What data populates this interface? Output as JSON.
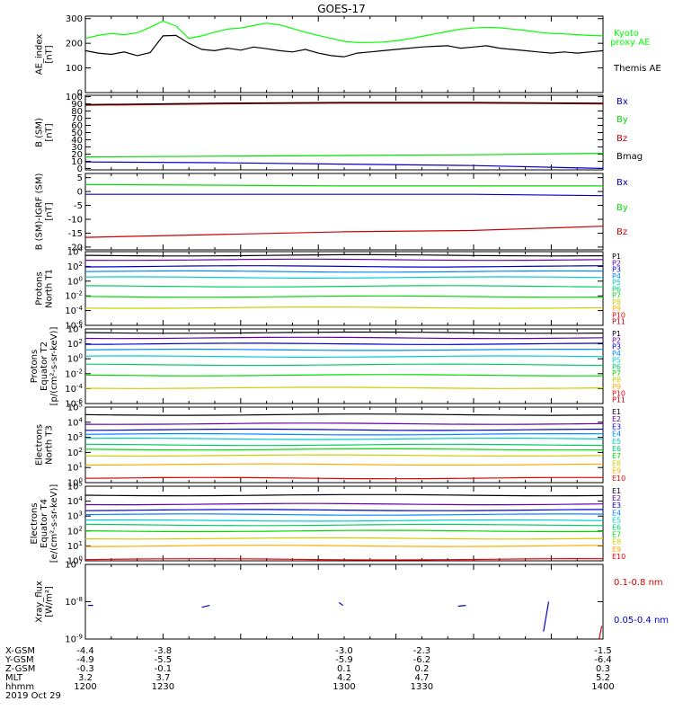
{
  "title": "GOES-17",
  "chart_data": [
    {
      "type": "line",
      "ylabel": [
        "AE_index",
        "[nT]"
      ],
      "ylim": [
        0,
        310
      ],
      "yticks": [
        "0",
        "100",
        "200",
        "300"
      ],
      "ytick_values": [
        0,
        100,
        200,
        300
      ],
      "x": [
        1200,
        1205,
        1210,
        1215,
        1220,
        1225,
        1230,
        1235,
        1240,
        1245,
        1250,
        1255,
        1260,
        1265,
        1270,
        1275,
        1280,
        1285,
        1290,
        1295,
        1300,
        1305,
        1310,
        1315,
        1320,
        1325,
        1330,
        1335,
        1340,
        1345,
        1350,
        1355,
        1360,
        1365,
        1370,
        1375,
        1380,
        1385,
        1390,
        1395,
        1400
      ],
      "series": [
        {
          "name": "Kyoto proxy AE",
          "color": "#00ff00",
          "values": [
            220,
            232,
            240,
            235,
            242,
            265,
            290,
            270,
            220,
            230,
            245,
            258,
            262,
            272,
            282,
            275,
            260,
            245,
            232,
            220,
            208,
            203,
            203,
            205,
            210,
            218,
            228,
            238,
            248,
            258,
            262,
            265,
            263,
            258,
            252,
            245,
            240,
            238,
            235,
            232,
            230
          ]
        },
        {
          "name": "Themis AE",
          "color": "#000000",
          "values": [
            170,
            160,
            155,
            165,
            150,
            162,
            230,
            232,
            200,
            175,
            170,
            180,
            172,
            185,
            178,
            170,
            165,
            175,
            160,
            150,
            145,
            160,
            165,
            170,
            175,
            180,
            185,
            188,
            190,
            180,
            185,
            190,
            180,
            175,
            170,
            165,
            160,
            165,
            160,
            165,
            170
          ]
        }
      ]
    },
    {
      "type": "line",
      "ylabel": [
        "B (SM)",
        "[nT]"
      ],
      "ylim": [
        -2,
        102
      ],
      "yticks": [
        "0",
        "10",
        "20",
        "30",
        "40",
        "50",
        "60",
        "70",
        "80",
        "90",
        "100"
      ],
      "ytick_values": [
        0,
        10,
        20,
        30,
        40,
        50,
        60,
        70,
        80,
        90,
        100
      ],
      "x": [
        1200,
        1250,
        1300,
        1350,
        1400
      ],
      "series": [
        {
          "name": "Bx",
          "color": "#0000cc",
          "values": [
            9,
            8,
            6,
            4,
            0
          ]
        },
        {
          "name": "By",
          "color": "#00dd00",
          "values": [
            16,
            17,
            18,
            19,
            21
          ]
        },
        {
          "name": "Bz",
          "color": "#cc0000",
          "values": [
            88,
            90,
            91,
            91,
            90
          ]
        },
        {
          "name": "Bmag",
          "color": "#000000",
          "values": [
            89,
            91,
            92,
            92,
            91
          ]
        }
      ]
    },
    {
      "type": "line",
      "ylabel": [
        "B (SM)-IGRF (SM)",
        "[nT]"
      ],
      "ylim": [
        -21,
        6.5
      ],
      "yticks": [
        "5",
        "0",
        "-5",
        "-10",
        "-15",
        "-20"
      ],
      "ytick_values": [
        5,
        0,
        -5,
        -10,
        -15,
        -20
      ],
      "x": [
        1200,
        1250,
        1300,
        1350,
        1400
      ],
      "series": [
        {
          "name": "Bx",
          "color": "#0000cc",
          "values": [
            -1,
            -1,
            -1,
            -1,
            -1.5
          ]
        },
        {
          "name": "By",
          "color": "#00dd00",
          "values": [
            2.5,
            2.3,
            2,
            2,
            2
          ]
        },
        {
          "name": "Bz",
          "color": "#cc0000",
          "values": [
            -16.5,
            -15.5,
            -14.5,
            -14,
            -12.5
          ]
        }
      ]
    },
    {
      "type": "line",
      "log": true,
      "ylabel": [
        "Protons",
        "North T1"
      ],
      "ylim": [
        -6,
        4
      ],
      "yticks": [
        "10^4",
        "10^2",
        "10^0",
        "10^-2",
        "10^-4",
        "10^-6"
      ],
      "ytick_values": [
        4,
        2,
        0,
        -2,
        -4,
        -6
      ],
      "labels": [
        "P1",
        "P2",
        "P3",
        "P4",
        "P5",
        "P6",
        "P7",
        "P8",
        "P9",
        "P10",
        "P11"
      ],
      "colors": [
        "#000000",
        "#6600aa",
        "#0000cc",
        "#0088ff",
        "#00cccc",
        "#00cc66",
        "#00dd00",
        "#cccc00",
        "#ffaa00",
        "#ee0000",
        "#aa0000"
      ],
      "log_levels": [
        3.5,
        2.9,
        2.0,
        1.3,
        0.5,
        -0.7,
        -2.1,
        -3.6,
        null,
        null,
        null
      ]
    },
    {
      "type": "line",
      "log": true,
      "ylabel": [
        "Protons",
        "Equator T2",
        "[p/(cm²-s-sr-keV)]"
      ],
      "ylim": [
        -6,
        4
      ],
      "yticks": [
        "10^4",
        "10^2",
        "10^0",
        "10^-2",
        "10^-4",
        "10^-6"
      ],
      "ytick_values": [
        4,
        2,
        0,
        -2,
        -4,
        -6
      ],
      "labels": [
        "P1",
        "P2",
        "P3",
        "P4",
        "P5",
        "P6",
        "P7",
        "P8",
        "P9",
        "P10",
        "P11"
      ],
      "colors": [
        "#000000",
        "#6600aa",
        "#0000cc",
        "#0088ff",
        "#00cccc",
        "#00cc66",
        "#00dd00",
        "#cccc00",
        "#ffaa00",
        "#ee0000",
        "#aa0000"
      ],
      "log_levels": [
        3.5,
        2.8,
        2.0,
        1.2,
        0.3,
        -0.8,
        -2.2,
        -3.9,
        null,
        null,
        null
      ]
    },
    {
      "type": "line",
      "log": true,
      "ylabel": [
        "Electrons",
        "North T3"
      ],
      "ylim": [
        0,
        5
      ],
      "yticks": [
        "10^5",
        "10^4",
        "10^3",
        "10^2",
        "10^1",
        "10^0"
      ],
      "ytick_values": [
        5,
        4,
        3,
        2,
        1,
        0
      ],
      "labels": [
        "E1",
        "E2",
        "E3",
        "E4",
        "E5",
        "E6",
        "E7",
        "E8",
        "E9",
        "E10"
      ],
      "colors": [
        "#000000",
        "#6600aa",
        "#0000cc",
        "#0088ff",
        "#00cccc",
        "#00cc66",
        "#00dd00",
        "#cccc00",
        "#ffaa00",
        "#ee0000",
        "#aa0000"
      ],
      "log_levels": [
        4.5,
        3.9,
        3.5,
        3.2,
        2.9,
        2.5,
        2.2,
        1.8,
        1.2,
        0.3
      ]
    },
    {
      "type": "line",
      "log": true,
      "ylabel": [
        "Electrons",
        "Equator T4",
        "[e/(cm²-s-sr-keV)]"
      ],
      "ylim": [
        0,
        5
      ],
      "yticks": [
        "10^5",
        "10^4",
        "10^3",
        "10^2",
        "10^1",
        "10^0"
      ],
      "ytick_values": [
        5,
        4,
        3,
        2,
        1,
        0
      ],
      "labels": [
        "E1",
        "E2",
        "E3",
        "E4",
        "E5",
        "E6",
        "E7",
        "E8",
        "E9",
        "E10"
      ],
      "colors": [
        "#000000",
        "#6600aa",
        "#0000cc",
        "#0088ff",
        "#00cccc",
        "#00cc66",
        "#00dd00",
        "#cccc00",
        "#ffaa00",
        "#ee0000",
        "#aa0000"
      ],
      "log_levels": [
        4.4,
        3.8,
        3.4,
        3.1,
        2.7,
        2.4,
        2.0,
        1.5,
        1.0,
        0.1
      ]
    },
    {
      "type": "line",
      "log": true,
      "ylabel": [
        "Xray_flux",
        "[W/m²]"
      ],
      "ylim": [
        -9,
        -7
      ],
      "yticks": [
        "10^-7",
        "10^-8",
        "10^-9"
      ],
      "ytick_values": [
        -7,
        -8,
        -9
      ],
      "series": [
        {
          "name": "0.1-0.8 nm",
          "color": "#cc0000",
          "segments": [
            [
              [
                1398.5,
                -9.0
              ],
              [
                1399.5,
                -8.65
              ]
            ]
          ]
        },
        {
          "name": "0.05-0.4 nm",
          "color": "#0000cc",
          "segments": [
            [
              [
                1201,
                -8.1
              ],
              [
                1203,
                -8.1
              ]
            ],
            [
              [
                1245,
                -8.15
              ],
              [
                1248,
                -8.1
              ]
            ],
            [
              [
                1298,
                -8.02
              ],
              [
                1299.5,
                -8.1
              ]
            ],
            [
              [
                1344,
                -8.12
              ],
              [
                1347,
                -8.1
              ]
            ],
            [
              [
                1377,
                -8.8
              ],
              [
                1379,
                -8.0
              ]
            ]
          ]
        }
      ]
    }
  ],
  "xaxis": {
    "rows": [
      {
        "label": "X-GSM",
        "values": [
          "-4.4",
          "-3.8",
          "-3.0",
          "-2.3",
          "-1.5"
        ]
      },
      {
        "label": "Y-GSM",
        "values": [
          "-4.9",
          "-5.5",
          "-5.9",
          "-6.2",
          "-6.4"
        ]
      },
      {
        "label": "Z-GSM",
        "values": [
          "-0.3",
          "-0.1",
          "0.1",
          "0.2",
          "0.3"
        ]
      },
      {
        "label": "MLT",
        "values": [
          "3.2",
          "3.7",
          "4.2",
          "4.7",
          "5.2"
        ]
      },
      {
        "label": "hhmm",
        "values": [
          "1200",
          "1230",
          "1300",
          "1330",
          "1400"
        ]
      }
    ],
    "date": "2019 Oct 29",
    "xlim": [
      1200,
      1400
    ]
  }
}
